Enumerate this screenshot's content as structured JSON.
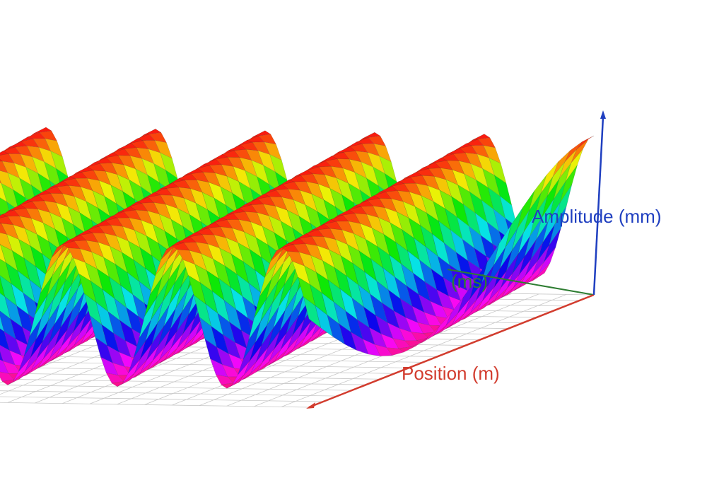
{
  "chart_data": {
    "type": "surface",
    "title": "",
    "xlabel": "Position (m)",
    "ylabel": "(ms)",
    "zlabel": "Amplitude (mm)",
    "x_range": [
      0,
      1
    ],
    "y_range": [
      0,
      1
    ],
    "z_range": [
      -1,
      1
    ],
    "surface": "z = sin(2*pi*k*position - 2*pi*f*time)",
    "wave_crests_visible": 5,
    "colormap": "rainbow (red at peak, yellow, green, cyan, blue, magenta, red at trough)",
    "grid": true,
    "legend": "none"
  },
  "colors": {
    "x_axis": "#d23c2e",
    "y_axis": "#2e7d32",
    "z_axis": "#1f3fc0",
    "floor_grid": "#c8c8c8",
    "mesh_lines": "#333333"
  }
}
